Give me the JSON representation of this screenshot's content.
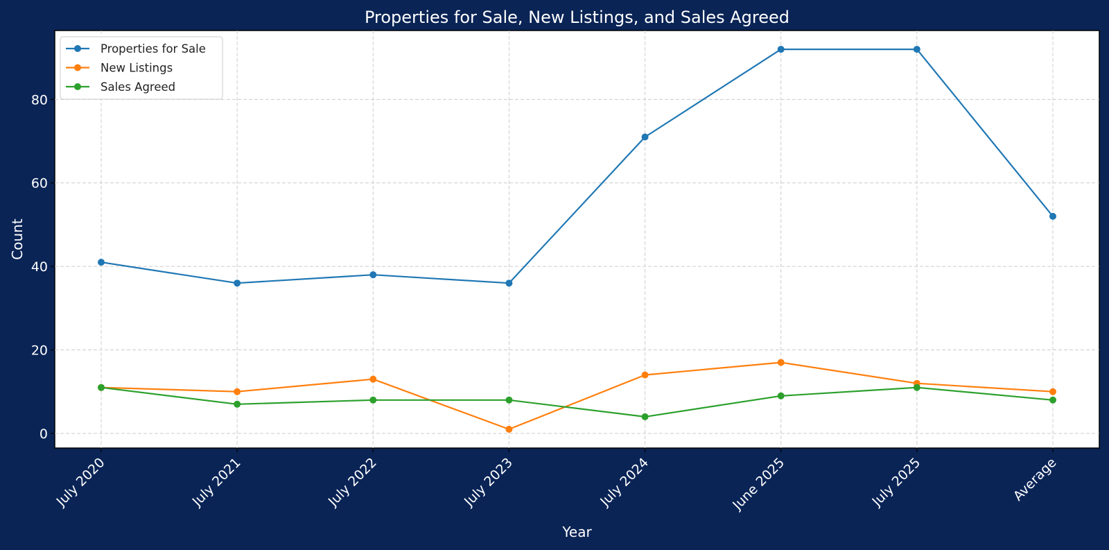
{
  "chart_data": {
    "type": "line",
    "title": "Properties for Sale, New Listings, and Sales Agreed",
    "xlabel": "Year",
    "ylabel": "Count",
    "categories": [
      "July 2020",
      "July 2021",
      "July 2022",
      "July 2023",
      "July 2024",
      "June 2025",
      "July 2025",
      "Average"
    ],
    "ylim": [
      -3.5,
      96.5
    ],
    "yticks": [
      0,
      20,
      40,
      60,
      80
    ],
    "grid": true,
    "legend_position": "top-left",
    "series": [
      {
        "name": "Properties for Sale",
        "color": "#1f77b4",
        "values": [
          41,
          36,
          38,
          36,
          71,
          92,
          92,
          52
        ]
      },
      {
        "name": "New Listings",
        "color": "#ff7f0e",
        "values": [
          11,
          10,
          13,
          1,
          14,
          17,
          12,
          10
        ]
      },
      {
        "name": "Sales Agreed",
        "color": "#2ca02c",
        "values": [
          11,
          7,
          8,
          8,
          4,
          9,
          11,
          8
        ]
      }
    ],
    "colors": {
      "figure_background": "#0a2456",
      "plot_background": "#ffffff",
      "text": "#ffffff",
      "grid": "#cccccc"
    }
  }
}
